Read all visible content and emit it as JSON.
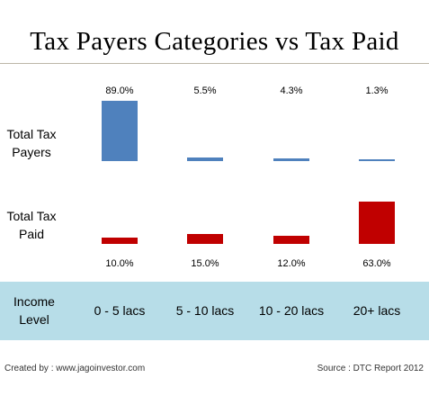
{
  "chart_data": {
    "type": "bar",
    "title": "Tax Payers Categories vs Tax Paid",
    "categories": [
      "0 - 5 lacs",
      "5 - 10 lacs",
      "10 - 20 lacs",
      "20+ lacs"
    ],
    "category_axis_label": "Income Level",
    "series": [
      {
        "name": "Total Tax Payers",
        "values": [
          89.0,
          5.5,
          4.3,
          1.3
        ],
        "labels": [
          "89.0%",
          "5.5%",
          "4.3%",
          "1.3%"
        ],
        "color": "#4f81bd"
      },
      {
        "name": "Total Tax Paid",
        "values": [
          10.0,
          15.0,
          12.0,
          63.0
        ],
        "labels": [
          "10.0%",
          "15.0%",
          "12.0%",
          "63.0%"
        ],
        "color": "#c00000"
      }
    ],
    "ylim": [
      0,
      100
    ],
    "legend": "none",
    "grid": false
  },
  "footer": {
    "created_by": "Created by : www.jagoinvestor.com",
    "source": "Source : DTC Report 2012"
  },
  "colors": {
    "band": "#b7dde8",
    "rule": "#bdb6a8"
  }
}
